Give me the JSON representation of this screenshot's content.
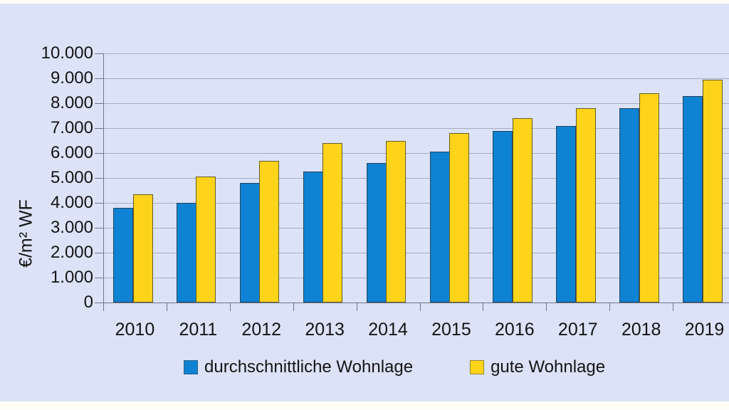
{
  "page": {
    "background": "#dce3f8",
    "frame": "#fffdf6",
    "text_color": "#141414"
  },
  "chart_data": {
    "type": "bar",
    "title": "",
    "categories": [
      "2010",
      "2011",
      "2012",
      "2013",
      "2014",
      "2015",
      "2016",
      "2017",
      "2018",
      "2019"
    ],
    "series": [
      {
        "name": "durchschnittliche Wohnlage",
        "color": "#0f83d3",
        "values": [
          3800,
          4000,
          4800,
          5250,
          5600,
          6050,
          6900,
          7100,
          7800,
          8300
        ]
      },
      {
        "name": "gute Wohnlage",
        "color": "#fdd41a",
        "values": [
          4350,
          5050,
          5700,
          6400,
          6500,
          6800,
          7400,
          7800,
          8400,
          8950
        ]
      }
    ],
    "xlabel": "",
    "ylabel": "€/m² WF",
    "ylim": [
      0,
      10000
    ],
    "ytick_step": 1000,
    "ytick_labels": [
      "0",
      "1.000",
      "2.000",
      "3.000",
      "4.000",
      "5.000",
      "6.000",
      "7.000",
      "8.000",
      "9.000",
      "10.000"
    ],
    "grid": true,
    "legend_position": "bottom",
    "gridline_color": "#a6acbd",
    "axis_color": "#6f7689"
  }
}
